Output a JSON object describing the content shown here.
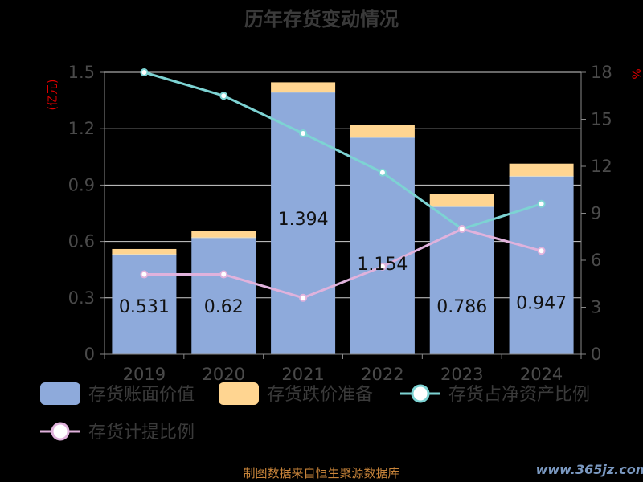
{
  "chart_data": {
    "type": "bar",
    "title": "历年存货变动情况",
    "categories": [
      "2019",
      "2020",
      "2021",
      "2022",
      "2023",
      "2024"
    ],
    "left_axis": {
      "unit": "(亿元)",
      "ylim": [
        0,
        1.5
      ],
      "ticks": [
        "0",
        "0.3",
        "0.6",
        "0.9",
        "1.2",
        "1.5"
      ]
    },
    "right_axis": {
      "unit": "%",
      "ylim": [
        0,
        18
      ],
      "ticks": [
        "0",
        "3",
        "6",
        "9",
        "12",
        "15",
        "18"
      ]
    },
    "series": [
      {
        "name": "存货账面价值",
        "kind": "bar",
        "stack": "inv",
        "color": "#8eaadb",
        "values": [
          0.531,
          0.62,
          1.394,
          1.154,
          0.786,
          0.947
        ],
        "labels": [
          "0.531",
          "0.62",
          "1.394",
          "1.154",
          "0.786",
          "0.947"
        ]
      },
      {
        "name": "存货跌价准备",
        "kind": "bar",
        "stack": "inv",
        "color": "#ffd591",
        "values": [
          0.029,
          0.034,
          0.053,
          0.068,
          0.068,
          0.067
        ]
      },
      {
        "name": "存货占净资产比例",
        "kind": "line",
        "axis": "right",
        "color": "#7dd3d3",
        "values": [
          18.0,
          16.5,
          14.1,
          11.6,
          8.0,
          9.6
        ]
      },
      {
        "name": "存货计提比例",
        "kind": "line",
        "axis": "right",
        "color": "#e0b2dc",
        "values": [
          5.1,
          5.1,
          3.6,
          5.6,
          8.0,
          6.6
        ]
      }
    ],
    "grid": true,
    "legend_position": "bottom"
  },
  "source_text": "制图数据来自恒生聚源数据库",
  "watermark_text": "www.365jz.com"
}
